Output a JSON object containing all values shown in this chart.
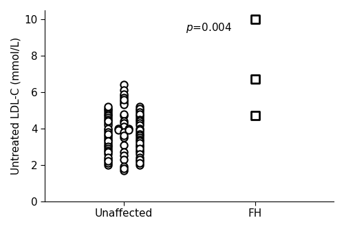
{
  "unaffected_points": [
    6.4,
    6.1,
    5.8,
    5.9,
    5.7,
    5.4,
    5.5,
    5.3,
    5.2,
    5.6,
    5.0,
    5.1,
    4.9,
    5.0,
    5.1,
    5.2,
    4.7,
    4.8,
    4.6,
    4.7,
    4.8,
    4.9,
    4.7,
    4.6,
    4.8,
    4.5,
    4.3,
    4.4,
    4.2,
    4.3,
    4.4,
    4.5,
    4.3,
    4.2,
    4.4,
    4.1,
    4.0,
    3.9,
    4.0,
    3.8,
    3.9,
    4.0,
    3.9,
    3.8,
    3.7,
    4.0,
    3.9,
    3.8,
    3.5,
    3.6,
    3.4,
    3.5,
    3.6,
    3.5,
    3.4,
    3.3,
    3.6,
    3.7,
    3.1,
    3.2,
    3.0,
    3.1,
    3.2,
    3.3,
    3.0,
    3.1,
    2.9,
    2.7,
    2.8,
    2.6,
    2.7,
    2.8,
    2.9,
    2.7,
    2.6,
    2.3,
    2.4,
    2.2,
    2.3,
    2.4,
    2.5,
    2.3,
    2.0,
    2.1,
    1.9,
    2.0,
    2.1,
    2.2,
    1.7,
    1.8
  ],
  "fh_points": [
    4.7,
    6.7,
    10.0
  ],
  "unaffected_x_center": 1,
  "fh_x_center": 2,
  "marker_unaffected": "o",
  "marker_fh": "s",
  "marker_size_unaffected": 55,
  "marker_size_fh": 80,
  "marker_facecolor": "white",
  "marker_edgecolor": "black",
  "marker_linewidth_unaffected": 1.5,
  "marker_linewidth_fh": 2.0,
  "ylabel": "Untreated LDL-C (mmol/L)",
  "xtick_labels": [
    "Unaffected",
    "FH"
  ],
  "xtick_positions": [
    1,
    2
  ],
  "ylim": [
    0,
    10.5
  ],
  "yticks": [
    0,
    2,
    4,
    6,
    8,
    10
  ],
  "pvalue_x": 1.65,
  "pvalue_y": 9.9,
  "pvalue_fontsize": 11,
  "ylabel_fontsize": 11,
  "tick_fontsize": 11,
  "background_color": "#ffffff",
  "spine_color": "#000000",
  "xlim": [
    0.4,
    2.6
  ]
}
